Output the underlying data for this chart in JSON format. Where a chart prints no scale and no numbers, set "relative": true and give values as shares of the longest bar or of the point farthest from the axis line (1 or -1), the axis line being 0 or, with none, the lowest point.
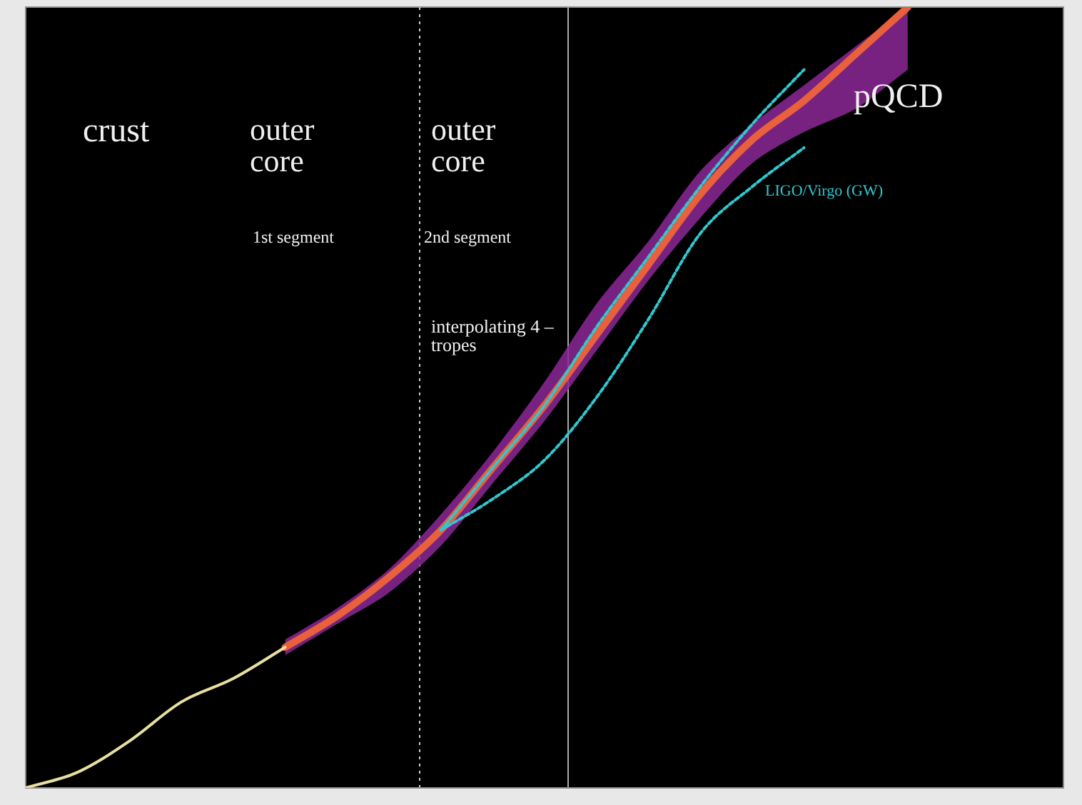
{
  "chart_data": {
    "type": "line",
    "relative": true,
    "marker": "none",
    "categories": [
      null,
      null,
      null,
      null,
      null,
      null,
      null,
      null,
      null,
      null,
      null,
      null,
      null,
      null,
      null,
      null,
      null,
      null,
      null,
      null,
      null
    ],
    "series": [
      {
        "color": "#e8e0a0",
        "values": [
          0,
          0.02,
          0.06,
          0.11,
          0.14,
          0.18,
          null,
          null,
          null,
          null,
          null,
          null,
          null,
          null,
          null,
          null,
          null,
          null,
          null,
          null,
          null
        ]
      },
      {
        "name": "interpolating 4 – tropes",
        "color": "#e8603c",
        "values": [
          null,
          null,
          null,
          null,
          null,
          0.18,
          0.22,
          0.27,
          0.33,
          0.41,
          0.49,
          0.58,
          0.67,
          0.76,
          0.83,
          0.88,
          0.94,
          1,
          null,
          null,
          null
        ],
        "lower": [
          null,
          null,
          null,
          null,
          null,
          0.17,
          0.21,
          0.25,
          0.31,
          0.39,
          0.47,
          0.56,
          0.65,
          0.73,
          0.8,
          0.84,
          0.87,
          0.92,
          null,
          null,
          null
        ],
        "upper": [
          null,
          null,
          null,
          null,
          null,
          0.19,
          0.23,
          0.28,
          0.35,
          0.43,
          0.52,
          0.62,
          0.7,
          0.79,
          0.85,
          0.9,
          0.95,
          1,
          null,
          null,
          null
        ]
      },
      {
        "color": "#30c8d0",
        "line_style": "dashed",
        "values": [
          null,
          null,
          null,
          null,
          null,
          null,
          null,
          null,
          0.33,
          0.41,
          0.49,
          0.59,
          0.68,
          0.77,
          0.85,
          0.92,
          null,
          null,
          null,
          null,
          null
        ]
      },
      {
        "name": "LIGO/Virgo (GW)",
        "color": "#30c8d0",
        "line_style": "dashed",
        "values": [
          null,
          null,
          null,
          null,
          null,
          null,
          null,
          null,
          0.33,
          0.37,
          0.42,
          0.5,
          0.6,
          0.71,
          0.77,
          0.82,
          null,
          null,
          null,
          null,
          null
        ]
      }
    ],
    "annotations": [
      "crust",
      "outer core",
      "outer core",
      "1st segment",
      "2nd segment",
      "pQCD"
    ]
  }
}
